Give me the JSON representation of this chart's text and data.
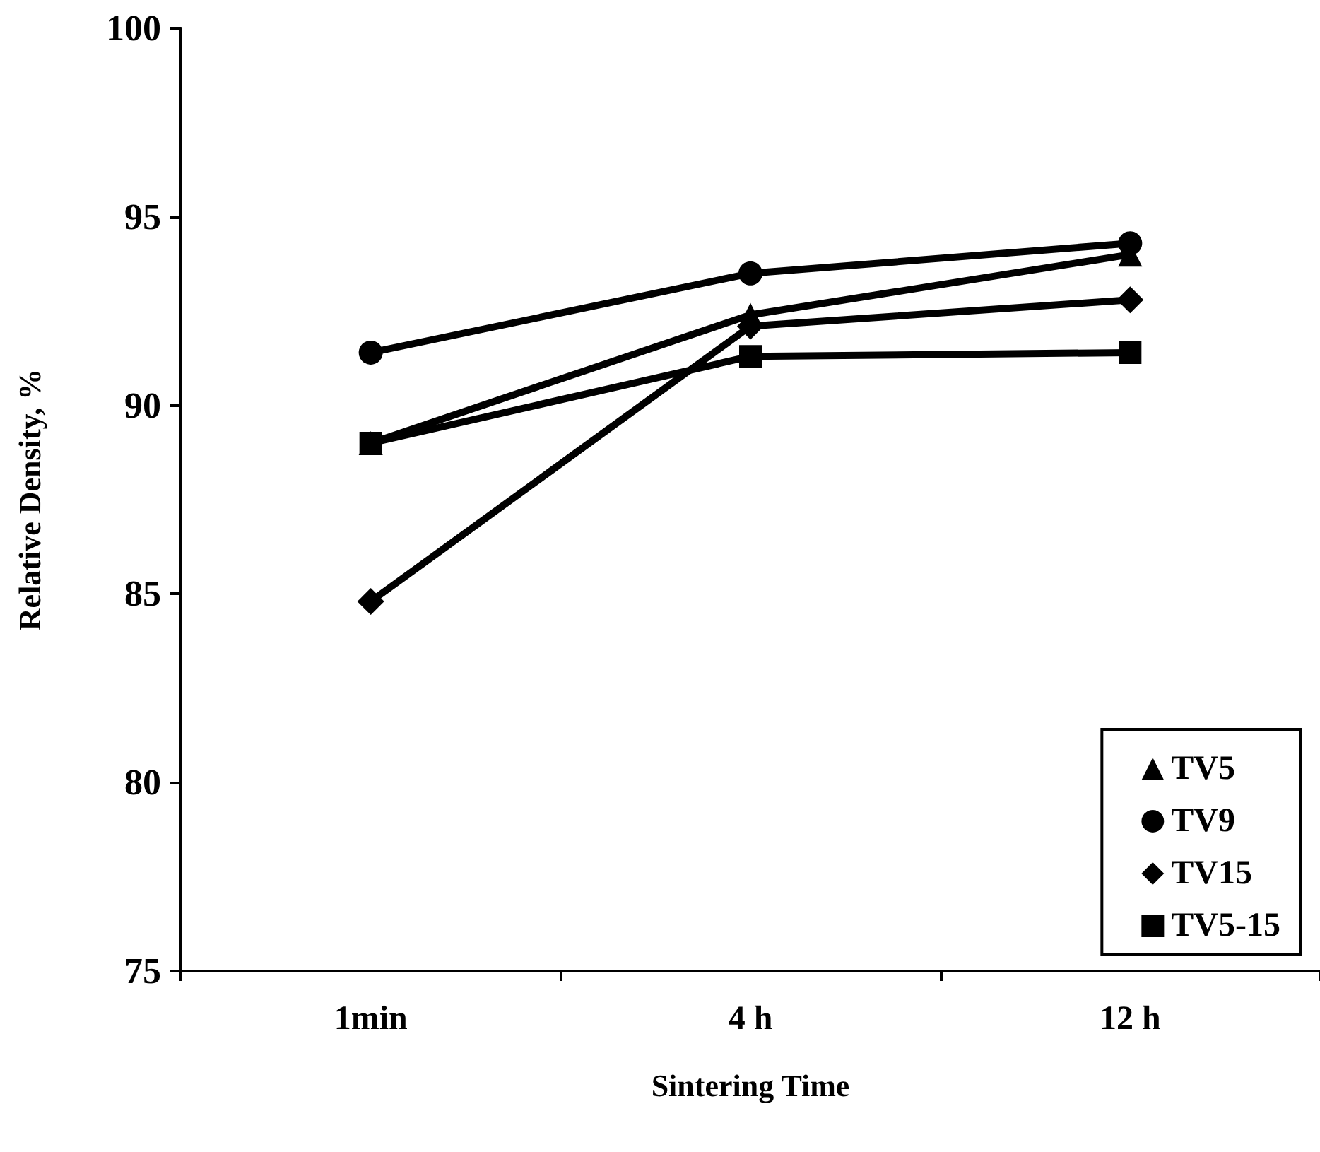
{
  "chart_data": {
    "type": "line",
    "xlabel": "Sintering Time",
    "ylabel": "Relative Density, %",
    "categories": [
      "1min",
      "4 h",
      "12 h"
    ],
    "series": [
      {
        "name": "TV5",
        "color": "#000000",
        "marker": "triangle",
        "values": [
          89.0,
          92.4,
          94.0
        ]
      },
      {
        "name": "TV9",
        "color": "#000000",
        "marker": "circle",
        "values": [
          91.4,
          93.5,
          94.3
        ]
      },
      {
        "name": "TV15",
        "color": "#000000",
        "marker": "diamond",
        "values": [
          84.8,
          92.1,
          92.8
        ]
      },
      {
        "name": "TV5-15",
        "color": "#000000",
        "marker": "square",
        "values": [
          89.0,
          91.3,
          91.4
        ]
      }
    ],
    "ylim": [
      75,
      100
    ],
    "yticks": [
      75,
      80,
      85,
      90,
      95,
      100
    ],
    "grid": false,
    "legend": "bottom right",
    "line_style": "solid"
  }
}
